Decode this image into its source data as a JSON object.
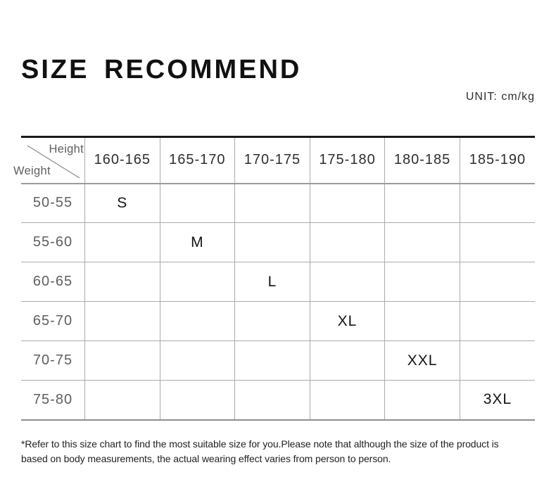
{
  "page": {
    "title": "SIZE RECOMMEND",
    "unit_label": "UNIT: cm/kg",
    "footnote_lines": [
      "*Refer to this size chart to find the most suitable size for you.Please note that although the size of the product is",
      "based on body measurements, the actual wearing effect varies from person to person."
    ]
  },
  "table": {
    "corner": {
      "top_label": "Height",
      "bottom_label": "Weight"
    },
    "columns": [
      "160-165",
      "165-170",
      "170-175",
      "175-180",
      "180-185",
      "185-190"
    ],
    "rows": [
      {
        "label": "50-55",
        "cells": [
          "S",
          "",
          "",
          "",
          "",
          ""
        ]
      },
      {
        "label": "55-60",
        "cells": [
          "",
          "M",
          "",
          "",
          "",
          ""
        ]
      },
      {
        "label": "60-65",
        "cells": [
          "",
          "",
          "L",
          "",
          "",
          ""
        ]
      },
      {
        "label": "65-70",
        "cells": [
          "",
          "",
          "",
          "XL",
          "",
          ""
        ]
      },
      {
        "label": "70-75",
        "cells": [
          "",
          "",
          "",
          "",
          "XXL",
          ""
        ]
      },
      {
        "label": "75-80",
        "cells": [
          "",
          "",
          "",
          "",
          "",
          "3XL"
        ]
      }
    ]
  },
  "chart_data": {
    "type": "table",
    "title": "SIZE RECOMMEND",
    "unit": "cm/kg",
    "column_axis_label": "Height",
    "row_axis_label": "Weight",
    "columns": [
      "160-165",
      "165-170",
      "170-175",
      "175-180",
      "180-185",
      "185-190"
    ],
    "rows": [
      "50-55",
      "55-60",
      "60-65",
      "65-70",
      "70-75",
      "75-80"
    ],
    "cells": [
      [
        "S",
        "",
        "",
        "",
        "",
        ""
      ],
      [
        "",
        "M",
        "",
        "",
        "",
        ""
      ],
      [
        "",
        "",
        "L",
        "",
        "",
        ""
      ],
      [
        "",
        "",
        "",
        "XL",
        "",
        ""
      ],
      [
        "",
        "",
        "",
        "",
        "XXL",
        ""
      ],
      [
        "",
        "",
        "",
        "",
        "",
        "3XL"
      ]
    ],
    "size_mapping": [
      {
        "size": "S",
        "height": "160-165",
        "weight": "50-55"
      },
      {
        "size": "M",
        "height": "165-170",
        "weight": "55-60"
      },
      {
        "size": "L",
        "height": "170-175",
        "weight": "60-65"
      },
      {
        "size": "XL",
        "height": "175-180",
        "weight": "65-70"
      },
      {
        "size": "XXL",
        "height": "180-185",
        "weight": "70-75"
      },
      {
        "size": "3XL",
        "height": "185-190",
        "weight": "75-80"
      }
    ],
    "layout": {
      "grid": true,
      "legend": false
    }
  },
  "colors": {
    "background": "#ffffff",
    "title_text": "#111111",
    "grid_line": "#ababab",
    "table_top_border": "#1a1a1a",
    "table_bottom_border": "#8f8f8f",
    "muted_text": "#5f5f5f",
    "header_text": "#2e2e2e",
    "size_text": "#141414",
    "note_text": "#222222"
  }
}
